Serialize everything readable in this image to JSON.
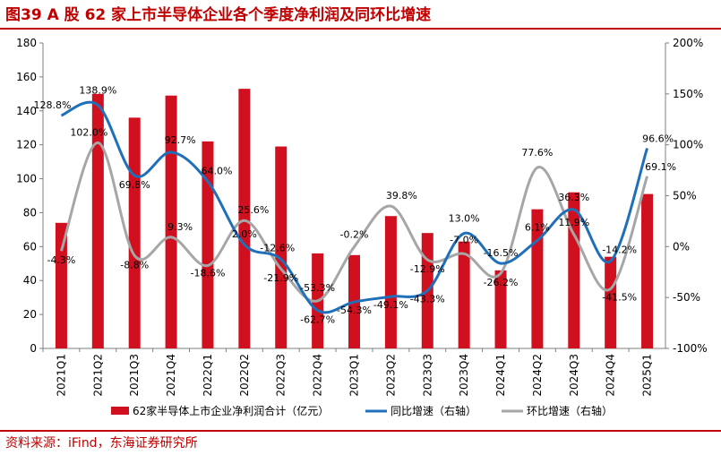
{
  "title": "图39  A 股 62 家上市半导体企业各个季度净利润及同环比增速",
  "source": "资料来源：iFind，东海证券研究所",
  "colors": {
    "accent": "#c00000",
    "bar": "#d0101e",
    "yoy": "#1f6fb9",
    "qoq": "#a6a6a6"
  },
  "chart_data": {
    "type": "bar",
    "categories": [
      "2021Q1",
      "2021Q2",
      "2021Q3",
      "2021Q4",
      "2022Q1",
      "2022Q2",
      "2022Q3",
      "2022Q4",
      "2023Q1",
      "2023Q2",
      "2023Q3",
      "2023Q4",
      "2024Q1",
      "2024Q2",
      "2024Q3",
      "2024Q4",
      "2025Q1"
    ],
    "left_axis": {
      "ylim": [
        0,
        180
      ],
      "ticks": [
        "0",
        "20",
        "40",
        "60",
        "80",
        "100",
        "120",
        "140",
        "160",
        "180"
      ]
    },
    "right_axis": {
      "ylim": [
        -100,
        200
      ],
      "ticks": [
        "-100%",
        "-50%",
        "0%",
        "50%",
        "100%",
        "150%",
        "200%"
      ]
    },
    "series": [
      {
        "name": "62家半导体上市企业净利润合计（亿元）",
        "type": "bar",
        "axis": "left",
        "values": [
          74,
          150,
          136,
          149,
          122,
          153,
          119,
          56,
          55,
          78,
          68,
          63,
          46,
          82,
          92,
          54,
          91
        ]
      },
      {
        "name": "同比增速（右轴）",
        "type": "line",
        "axis": "right",
        "values": [
          128.8,
          138.9,
          69.8,
          92.7,
          64.0,
          2.0,
          -12.6,
          -62.7,
          -54.3,
          -49.1,
          -43.3,
          13.0,
          -16.5,
          6.1,
          36.3,
          -14.2,
          96.6
        ],
        "labels": [
          "128.8%",
          "138.9%",
          "69.8%",
          "92.7%",
          "64.0%",
          "2.0%",
          "-12.6%",
          "-62.7%",
          "-54.3%",
          "-49.1%",
          "-43.3%",
          "13.0%",
          "-16.5%",
          "6.1%",
          "36.3%",
          "-14.2%",
          "96.6%"
        ]
      },
      {
        "name": "环比增速（右轴）",
        "type": "line",
        "axis": "right",
        "values": [
          -4.3,
          102.0,
          -8.8,
          9.3,
          -18.6,
          25.6,
          -21.9,
          -53.3,
          -0.2,
          39.8,
          -12.9,
          -7.0,
          -26.2,
          77.6,
          11.9,
          -41.5,
          69.1
        ],
        "labels": [
          "-4.3%",
          "102.0%",
          "-8.8%",
          "9.3%",
          "-18.6%",
          "25.6%",
          "-21.9%",
          "-53.3%",
          "-0.2%",
          "39.8%",
          "-12.9%",
          "-7.0%",
          "-26.2%",
          "77.6%",
          "11.9%",
          "-41.5%",
          "69.1%"
        ]
      }
    ],
    "legend": "bottom"
  }
}
